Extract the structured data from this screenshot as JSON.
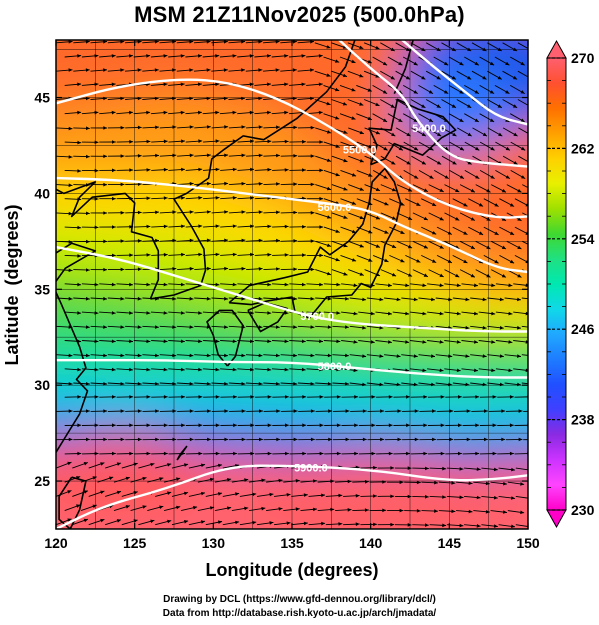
{
  "title": "MSM 21Z11Nov2025 (500.0hPa)",
  "credits": {
    "line1": "Drawing by DCL (https://www.gfd-dennou.org/library/dcl/)",
    "line2": "Data from http://database.rish.kyoto-u.ac.jp/arch/jmadata/"
  },
  "map": {
    "xlabel": "Longitude (degrees)",
    "ylabel": "Latitude  (degrees)",
    "x_ticks": [
      {
        "value": 120,
        "label": "120"
      },
      {
        "value": 125,
        "label": "125"
      },
      {
        "value": 130,
        "label": "130"
      },
      {
        "value": 135,
        "label": "135"
      },
      {
        "value": 140,
        "label": "140"
      },
      {
        "value": 145,
        "label": "145"
      },
      {
        "value": 150,
        "label": "150"
      }
    ],
    "y_ticks": [
      {
        "value": 25,
        "label": "25"
      },
      {
        "value": 30,
        "label": "30"
      },
      {
        "value": 35,
        "label": "35"
      },
      {
        "value": 40,
        "label": "40"
      },
      {
        "value": 45,
        "label": "45"
      }
    ],
    "lon_range": [
      120,
      150
    ],
    "lat_range": [
      22.5,
      48
    ],
    "grid": true,
    "contours": [
      {
        "label": "5700.0",
        "points": [
          [
            120,
            37.2
          ],
          [
            124,
            36.6
          ],
          [
            128,
            35.6
          ],
          [
            132,
            34.6
          ],
          [
            136,
            33.6
          ],
          [
            139,
            33.2
          ],
          [
            143,
            33.0
          ],
          [
            147,
            32.8
          ],
          [
            150,
            32.8
          ]
        ],
        "label_at": [
          136.6,
          33.6
        ]
      },
      {
        "label": "5800.0",
        "points": [
          [
            120,
            31.3
          ],
          [
            123,
            31.3
          ],
          [
            127,
            31.3
          ],
          [
            131,
            31.2
          ],
          [
            135,
            31.2
          ],
          [
            139,
            30.9
          ],
          [
            143,
            30.6
          ],
          [
            147,
            30.4
          ],
          [
            150,
            30.4
          ]
        ],
        "label_at": [
          137.7,
          31.0
        ]
      },
      {
        "label": "5900.0",
        "points": [
          [
            120,
            22.5
          ],
          [
            123,
            23.7
          ],
          [
            127,
            24.6
          ],
          [
            131,
            25.8
          ],
          [
            135,
            25.8
          ],
          [
            140,
            25.6
          ],
          [
            145,
            25.0
          ],
          [
            148,
            25.1
          ],
          [
            150,
            25.3
          ]
        ],
        "label_at": [
          136.2,
          25.7
        ]
      },
      {
        "label": "5600.0",
        "points": [
          [
            120,
            40.8
          ],
          [
            124,
            40.7
          ],
          [
            128,
            40.4
          ],
          [
            132,
            40.0
          ],
          [
            135,
            39.7
          ],
          [
            138,
            39.4
          ],
          [
            140,
            39.1
          ],
          [
            142,
            38.3
          ],
          [
            145,
            37.3
          ],
          [
            148,
            36.1
          ],
          [
            150,
            35.9
          ]
        ],
        "label_at": [
          137.7,
          39.3
        ]
      },
      {
        "label": "5500.0",
        "points": [
          [
            120,
            44.7
          ],
          [
            124,
            45.6
          ],
          [
            128,
            46.0
          ],
          [
            131,
            45.8
          ],
          [
            134,
            45.0
          ],
          [
            137,
            43.7
          ],
          [
            140,
            42.1
          ],
          [
            142,
            40.6
          ],
          [
            145,
            39.3
          ],
          [
            148,
            38.7
          ],
          [
            150,
            38.8
          ]
        ],
        "label_at": [
          139.3,
          42.3
        ]
      },
      {
        "label": "5400.0",
        "points": [
          [
            138,
            48
          ],
          [
            140,
            46.5
          ],
          [
            142,
            45.2
          ],
          [
            143,
            43.7
          ],
          [
            145,
            41.9
          ],
          [
            147,
            41.6
          ],
          [
            150,
            41.4
          ]
        ],
        "label_at": [
          143.7,
          43.4
        ]
      },
      {
        "label": "",
        "points": [
          [
            142,
            48
          ],
          [
            144,
            46.6
          ],
          [
            146,
            45.3
          ],
          [
            148,
            44.0
          ],
          [
            150,
            43.6
          ]
        ],
        "label_at": null
      }
    ],
    "coastlines": [
      [
        [
          130.9,
          31.0
        ],
        [
          130.3,
          31.6
        ],
        [
          130.0,
          32.6
        ],
        [
          129.6,
          33.3
        ],
        [
          130.4,
          33.9
        ],
        [
          131.2,
          33.9
        ],
        [
          131.9,
          33.1
        ],
        [
          131.4,
          31.5
        ],
        [
          130.9,
          31.0
        ]
      ],
      [
        [
          132.2,
          33.9
        ],
        [
          133.0,
          32.8
        ],
        [
          134.1,
          33.3
        ],
        [
          134.7,
          34.0
        ],
        [
          133.3,
          34.3
        ],
        [
          132.2,
          33.9
        ]
      ],
      [
        [
          131.0,
          34.3
        ],
        [
          132.3,
          35.2
        ],
        [
          134.5,
          35.6
        ],
        [
          136.0,
          35.9
        ],
        [
          136.8,
          37.2
        ],
        [
          137.4,
          36.8
        ],
        [
          138.6,
          37.5
        ],
        [
          139.5,
          38.4
        ],
        [
          139.9,
          39.5
        ],
        [
          140.1,
          40.6
        ],
        [
          140.9,
          41.3
        ],
        [
          141.5,
          40.6
        ],
        [
          141.9,
          39.5
        ],
        [
          141.6,
          38.4
        ],
        [
          140.9,
          37.3
        ],
        [
          140.7,
          36.3
        ],
        [
          140.0,
          35.1
        ],
        [
          139.4,
          35.3
        ],
        [
          138.8,
          34.7
        ],
        [
          137.2,
          34.6
        ],
        [
          136.9,
          34.3
        ],
        [
          136.1,
          33.5
        ],
        [
          135.2,
          33.8
        ],
        [
          135.0,
          34.6
        ],
        [
          133.5,
          34.4
        ],
        [
          132.4,
          34.2
        ],
        [
          131.0,
          34.3
        ]
      ],
      [
        [
          140.0,
          41.5
        ],
        [
          140.4,
          42.5
        ],
        [
          139.9,
          43.4
        ],
        [
          141.3,
          43.3
        ],
        [
          141.7,
          44.9
        ],
        [
          143.0,
          44.4
        ],
        [
          144.6,
          44.0
        ],
        [
          145.4,
          43.3
        ],
        [
          144.5,
          42.9
        ],
        [
          143.3,
          42.0
        ],
        [
          141.5,
          42.6
        ],
        [
          140.9,
          41.8
        ],
        [
          140.0,
          41.5
        ]
      ],
      [
        [
          141.5,
          45.2
        ],
        [
          142.2,
          46.5
        ],
        [
          142.7,
          48.0
        ]
      ],
      [
        [
          126.0,
          34.5
        ],
        [
          126.5,
          35.5
        ],
        [
          126.5,
          37.0
        ],
        [
          126.1,
          37.7
        ],
        [
          124.8,
          38.0
        ],
        [
          125.0,
          39.5
        ],
        [
          124.4,
          40.0
        ],
        [
          122.3,
          39.8
        ],
        [
          121.0,
          38.8
        ],
        [
          121.5,
          39.8
        ],
        [
          122.5,
          40.6
        ],
        [
          120.5,
          40.0
        ],
        [
          119.8,
          40.3
        ]
      ],
      [
        [
          126.0,
          34.5
        ],
        [
          127.5,
          34.7
        ],
        [
          129.2,
          35.2
        ],
        [
          129.5,
          36.0
        ],
        [
          129.4,
          37.1
        ],
        [
          128.6,
          38.3
        ],
        [
          127.5,
          39.7
        ],
        [
          128.3,
          40.0
        ],
        [
          129.7,
          40.8
        ],
        [
          129.9,
          41.8
        ],
        [
          130.7,
          42.3
        ],
        [
          131.9,
          43.0
        ],
        [
          133.2,
          42.8
        ],
        [
          135.3,
          43.9
        ],
        [
          137.2,
          45.3
        ],
        [
          138.4,
          46.6
        ],
        [
          139.0,
          48.0
        ]
      ],
      [
        [
          120.0,
          36.9
        ],
        [
          121.0,
          37.4
        ],
        [
          122.5,
          37.0
        ],
        [
          120.6,
          36.1
        ],
        [
          119.8,
          35.2
        ],
        [
          120.3,
          34.3
        ],
        [
          121.5,
          32.0
        ],
        [
          121.9,
          30.9
        ],
        [
          121.3,
          30.3
        ],
        [
          122.0,
          29.7
        ],
        [
          121.5,
          28.5
        ],
        [
          120.6,
          27.3
        ],
        [
          120.0,
          26.5
        ]
      ],
      [
        [
          121.0,
          25.2
        ],
        [
          121.9,
          25.0
        ],
        [
          121.5,
          23.5
        ],
        [
          120.9,
          22.5
        ],
        [
          120.2,
          23.0
        ],
        [
          120.2,
          24.2
        ],
        [
          121.0,
          25.2
        ]
      ],
      [
        [
          127.7,
          26.1
        ],
        [
          128.3,
          26.8
        ],
        [
          127.9,
          26.4
        ],
        [
          127.7,
          26.1
        ]
      ]
    ],
    "wind_field": {
      "description": "streamline arrows",
      "style": "black arrows"
    }
  },
  "colorbar": {
    "min": 230,
    "max": 270,
    "ticks": [
      {
        "value": 270,
        "label": "270"
      },
      {
        "value": 262,
        "label": "262"
      },
      {
        "value": 254,
        "label": "254"
      },
      {
        "value": 246,
        "label": "246"
      },
      {
        "value": 238,
        "label": "238"
      },
      {
        "value": 230,
        "label": "230"
      }
    ],
    "colors": [
      "#ff00c8",
      "#ff44ff",
      "#cc33ff",
      "#8a2be2",
      "#4040ff",
      "#2050ff",
      "#1e7cff",
      "#20a8ff",
      "#10d8e8",
      "#00e8b0",
      "#20e080",
      "#40d830",
      "#a0e000",
      "#e8f000",
      "#ffd000",
      "#ffa000",
      "#ff7000",
      "#ff5030",
      "#ff6070"
    ]
  },
  "colors": {
    "field": [
      "#2a64f0",
      "#1f8bff",
      "#12c8e8",
      "#18e0a0",
      "#2ad86a",
      "#6cd81e",
      "#c8ec00",
      "#ffd800",
      "#ff9a14",
      "#ff6a2a",
      "#ff5c55",
      "#ff6470"
    ]
  }
}
